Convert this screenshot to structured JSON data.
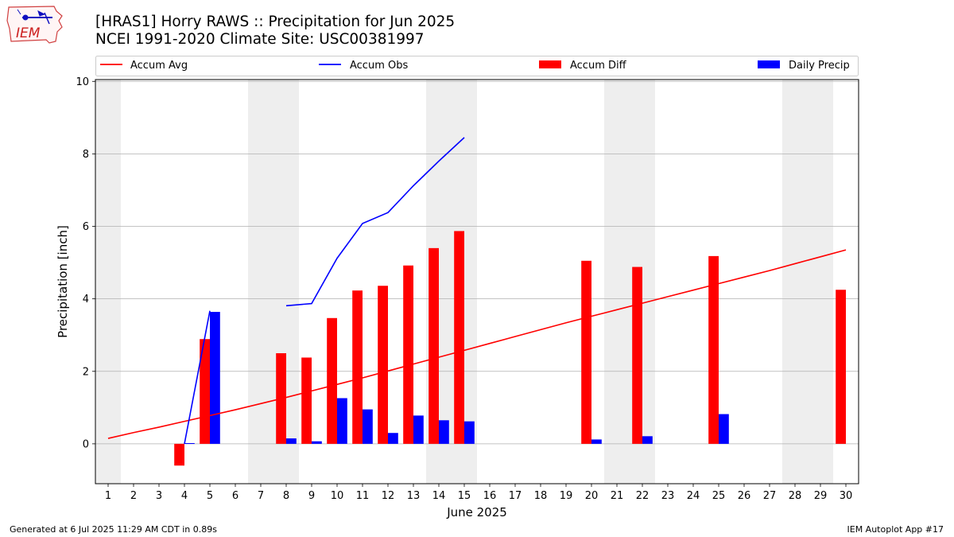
{
  "header": {
    "title": "[HRAS1] Horry RAWS :: Precipitation for Jun 2025",
    "subtitle": "NCEI 1991-2020 Climate Site: USC00381997"
  },
  "logo": {
    "text": "IEM",
    "icon": "iem-iowa-logo-icon"
  },
  "footer": {
    "left": "Generated at 6 Jul 2025 11:29 AM CDT in 0.89s",
    "right": "IEM Autoplot App #17"
  },
  "colors": {
    "avg": "#ff0000",
    "obs": "#0000ff",
    "diff": "#ff0000",
    "daily": "#0000ff",
    "weekend": "#eeeeee",
    "grid": "#b0b0b0"
  },
  "chart_data": {
    "type": "bar",
    "xlabel": "June 2025",
    "ylabel": "Precipitation [inch]",
    "ylim": [
      -1.1,
      10.05
    ],
    "xlim": [
      0.5,
      30.5
    ],
    "yticks": [
      0,
      2,
      4,
      6,
      8,
      10
    ],
    "grid": "horizontal",
    "legend_placement": "top (above plot)",
    "x": [
      1,
      2,
      3,
      4,
      5,
      6,
      7,
      8,
      9,
      10,
      11,
      12,
      13,
      14,
      15,
      16,
      17,
      18,
      19,
      20,
      21,
      22,
      23,
      24,
      25,
      26,
      27,
      28,
      29,
      30
    ],
    "weekend_days": [
      1,
      7,
      8,
      14,
      15,
      21,
      22,
      28,
      29
    ],
    "series": [
      {
        "name": "Accum Avg",
        "type": "line",
        "values": [
          0.15,
          0.31,
          0.46,
          0.62,
          0.78,
          0.94,
          1.11,
          1.28,
          1.46,
          1.64,
          1.82,
          2.01,
          2.2,
          2.39,
          2.58,
          2.77,
          2.96,
          3.15,
          3.34,
          3.52,
          3.7,
          3.88,
          4.06,
          4.24,
          4.42,
          4.6,
          4.78,
          4.97,
          5.16,
          5.35
        ]
      },
      {
        "name": "Accum Obs",
        "type": "line",
        "values": [
          null,
          null,
          null,
          0.0,
          3.67,
          null,
          null,
          3.81,
          3.87,
          5.12,
          6.08,
          6.38,
          7.12,
          7.8,
          8.45,
          null,
          null,
          null,
          null,
          null,
          null,
          null,
          null,
          null,
          null,
          null,
          null,
          null,
          null,
          null
        ]
      },
      {
        "name": "Accum Diff",
        "type": "bar",
        "values": [
          null,
          null,
          null,
          -0.6,
          2.89,
          null,
          null,
          2.5,
          2.38,
          3.47,
          4.23,
          4.36,
          4.92,
          5.4,
          5.87,
          null,
          null,
          null,
          null,
          5.05,
          null,
          4.88,
          null,
          null,
          5.18,
          null,
          null,
          null,
          null,
          4.25
        ]
      },
      {
        "name": "Daily Precip",
        "type": "bar",
        "values": [
          null,
          null,
          null,
          0.02,
          3.64,
          null,
          null,
          0.15,
          0.07,
          1.26,
          0.95,
          0.3,
          0.78,
          0.65,
          0.62,
          null,
          null,
          null,
          null,
          0.12,
          null,
          0.21,
          null,
          null,
          0.82,
          null,
          null,
          null,
          null,
          null
        ]
      }
    ]
  }
}
